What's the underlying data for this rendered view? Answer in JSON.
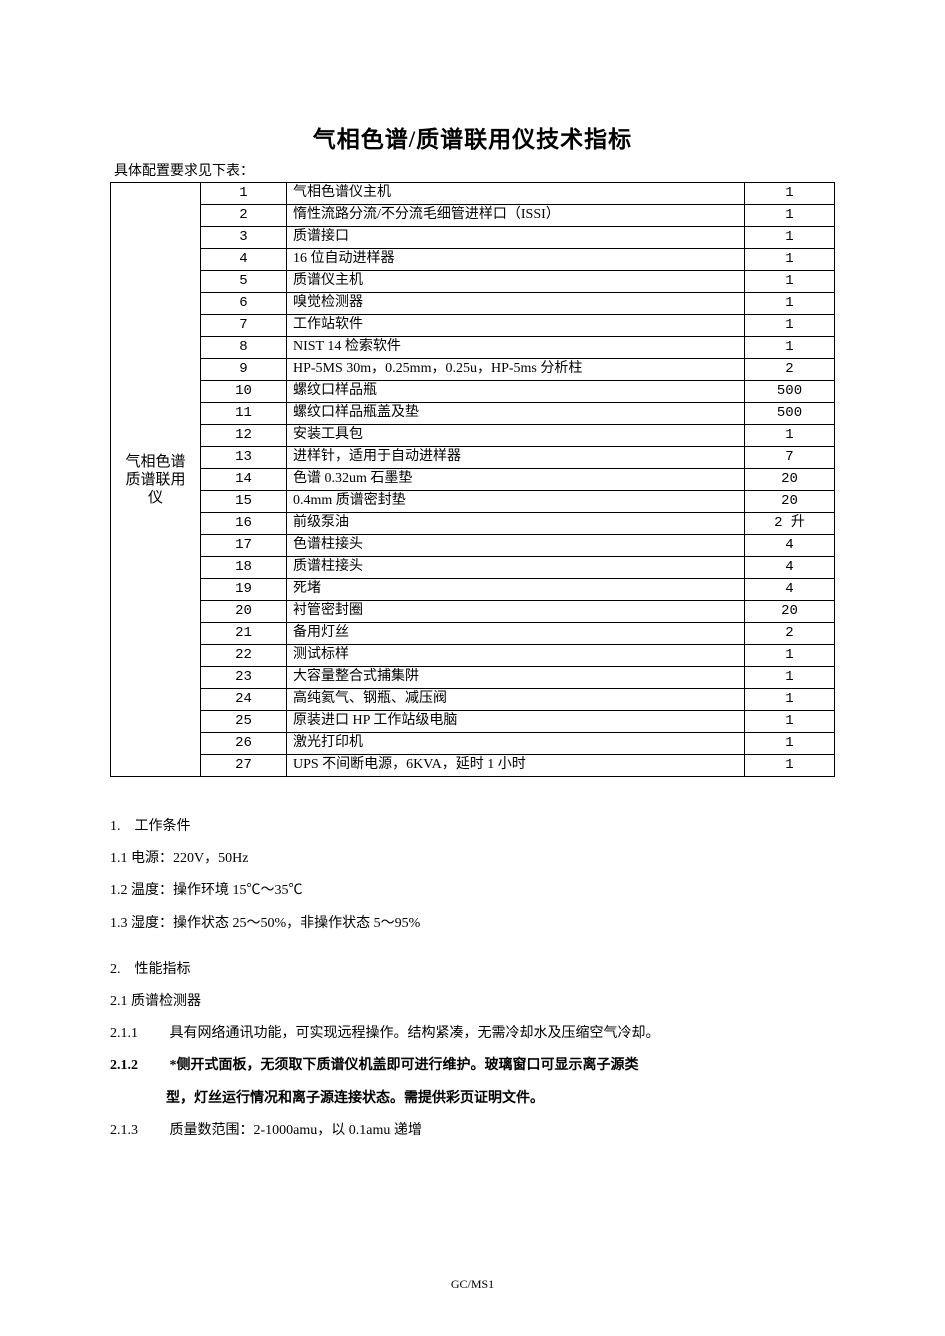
{
  "title": "气相色谱/质谱联用仪技术指标",
  "subtitle": "具体配置要求见下表：",
  "footer": "GC/MS1",
  "table": {
    "row_header": "气相色谱\n质谱联用\n仪",
    "rows": [
      {
        "idx": "1",
        "desc": "气相色谱仪主机",
        "qty": "1"
      },
      {
        "idx": "2",
        "desc": "惰性流路分流/不分流毛细管进样口（ISSI）",
        "qty": "1"
      },
      {
        "idx": "3",
        "desc": "质谱接口",
        "qty": "1"
      },
      {
        "idx": "4",
        "desc": "16 位自动进样器",
        "qty": "1"
      },
      {
        "idx": "5",
        "desc": "质谱仪主机",
        "qty": "1"
      },
      {
        "idx": "6",
        "desc": "嗅觉检测器",
        "qty": "1"
      },
      {
        "idx": "7",
        "desc": "工作站软件",
        "qty": "1"
      },
      {
        "idx": "8",
        "desc": "NIST 14 检索软件",
        "qty": "1"
      },
      {
        "idx": "9",
        "desc": "HP-5MS 30m，0.25mm，0.25u，HP-5ms 分析柱",
        "qty": "2"
      },
      {
        "idx": "10",
        "desc": "螺纹口样品瓶",
        "qty": "500"
      },
      {
        "idx": "11",
        "desc": "螺纹口样品瓶盖及垫",
        "qty": "500"
      },
      {
        "idx": "12",
        "desc": "安装工具包",
        "qty": "1"
      },
      {
        "idx": "13",
        "desc": "进样针，适用于自动进样器",
        "qty": "7"
      },
      {
        "idx": "14",
        "desc": "色谱 0.32um 石墨垫",
        "qty": "20"
      },
      {
        "idx": "15",
        "desc": "0.4mm 质谱密封垫",
        "qty": "20"
      },
      {
        "idx": "16",
        "desc": "前级泵油",
        "qty": "2 升"
      },
      {
        "idx": "17",
        "desc": "色谱柱接头",
        "qty": "4"
      },
      {
        "idx": "18",
        "desc": "质谱柱接头",
        "qty": "4"
      },
      {
        "idx": "19",
        "desc": "死堵",
        "qty": "4"
      },
      {
        "idx": "20",
        "desc": "衬管密封圈",
        "qty": "20"
      },
      {
        "idx": "21",
        "desc": "备用灯丝",
        "qty": "2"
      },
      {
        "idx": "22",
        "desc": "测试标样",
        "qty": "1"
      },
      {
        "idx": "23",
        "desc": "大容量整合式捕集阱",
        "qty": "1"
      },
      {
        "idx": "24",
        "desc": "高纯氦气、钢瓶、减压阀",
        "qty": "1"
      },
      {
        "idx": "25",
        "desc": "原装进口 HP 工作站级电脑",
        "qty": "1"
      },
      {
        "idx": "26",
        "desc": "激光打印机",
        "qty": "1"
      },
      {
        "idx": "27",
        "desc": "UPS 不间断电源，6KVA，延时 1 小时",
        "qty": "1"
      }
    ]
  },
  "sections": {
    "s1": {
      "heading": "1.　工作条件",
      "items": {
        "i1": "1.1 电源：220V，50Hz",
        "i2": "1.2 温度：操作环境 15℃～35℃",
        "i3": "1.3 湿度：操作状态 25～50%，非操作状态 5～95%"
      }
    },
    "s2": {
      "heading": "2.　性能指标",
      "sub1": "2.1 质谱检测器",
      "items": {
        "i1_tag": "2.1.1",
        "i1_txt": "具有网络通讯功能，可实现远程操作。结构紧凑，无需冷却水及压缩空气冷却。",
        "i2_tag": "2.1.2",
        "i2_txt": "*侧开式面板，无须取下质谱仪机盖即可进行维护。玻璃窗口可显示离子源类",
        "i2_cont": "型，灯丝运行情况和离子源连接状态。需提供彩页证明文件。",
        "i3_tag": "2.1.3",
        "i3_txt": "质量数范围：2-1000amu，以 0.1amu 递增"
      }
    }
  }
}
